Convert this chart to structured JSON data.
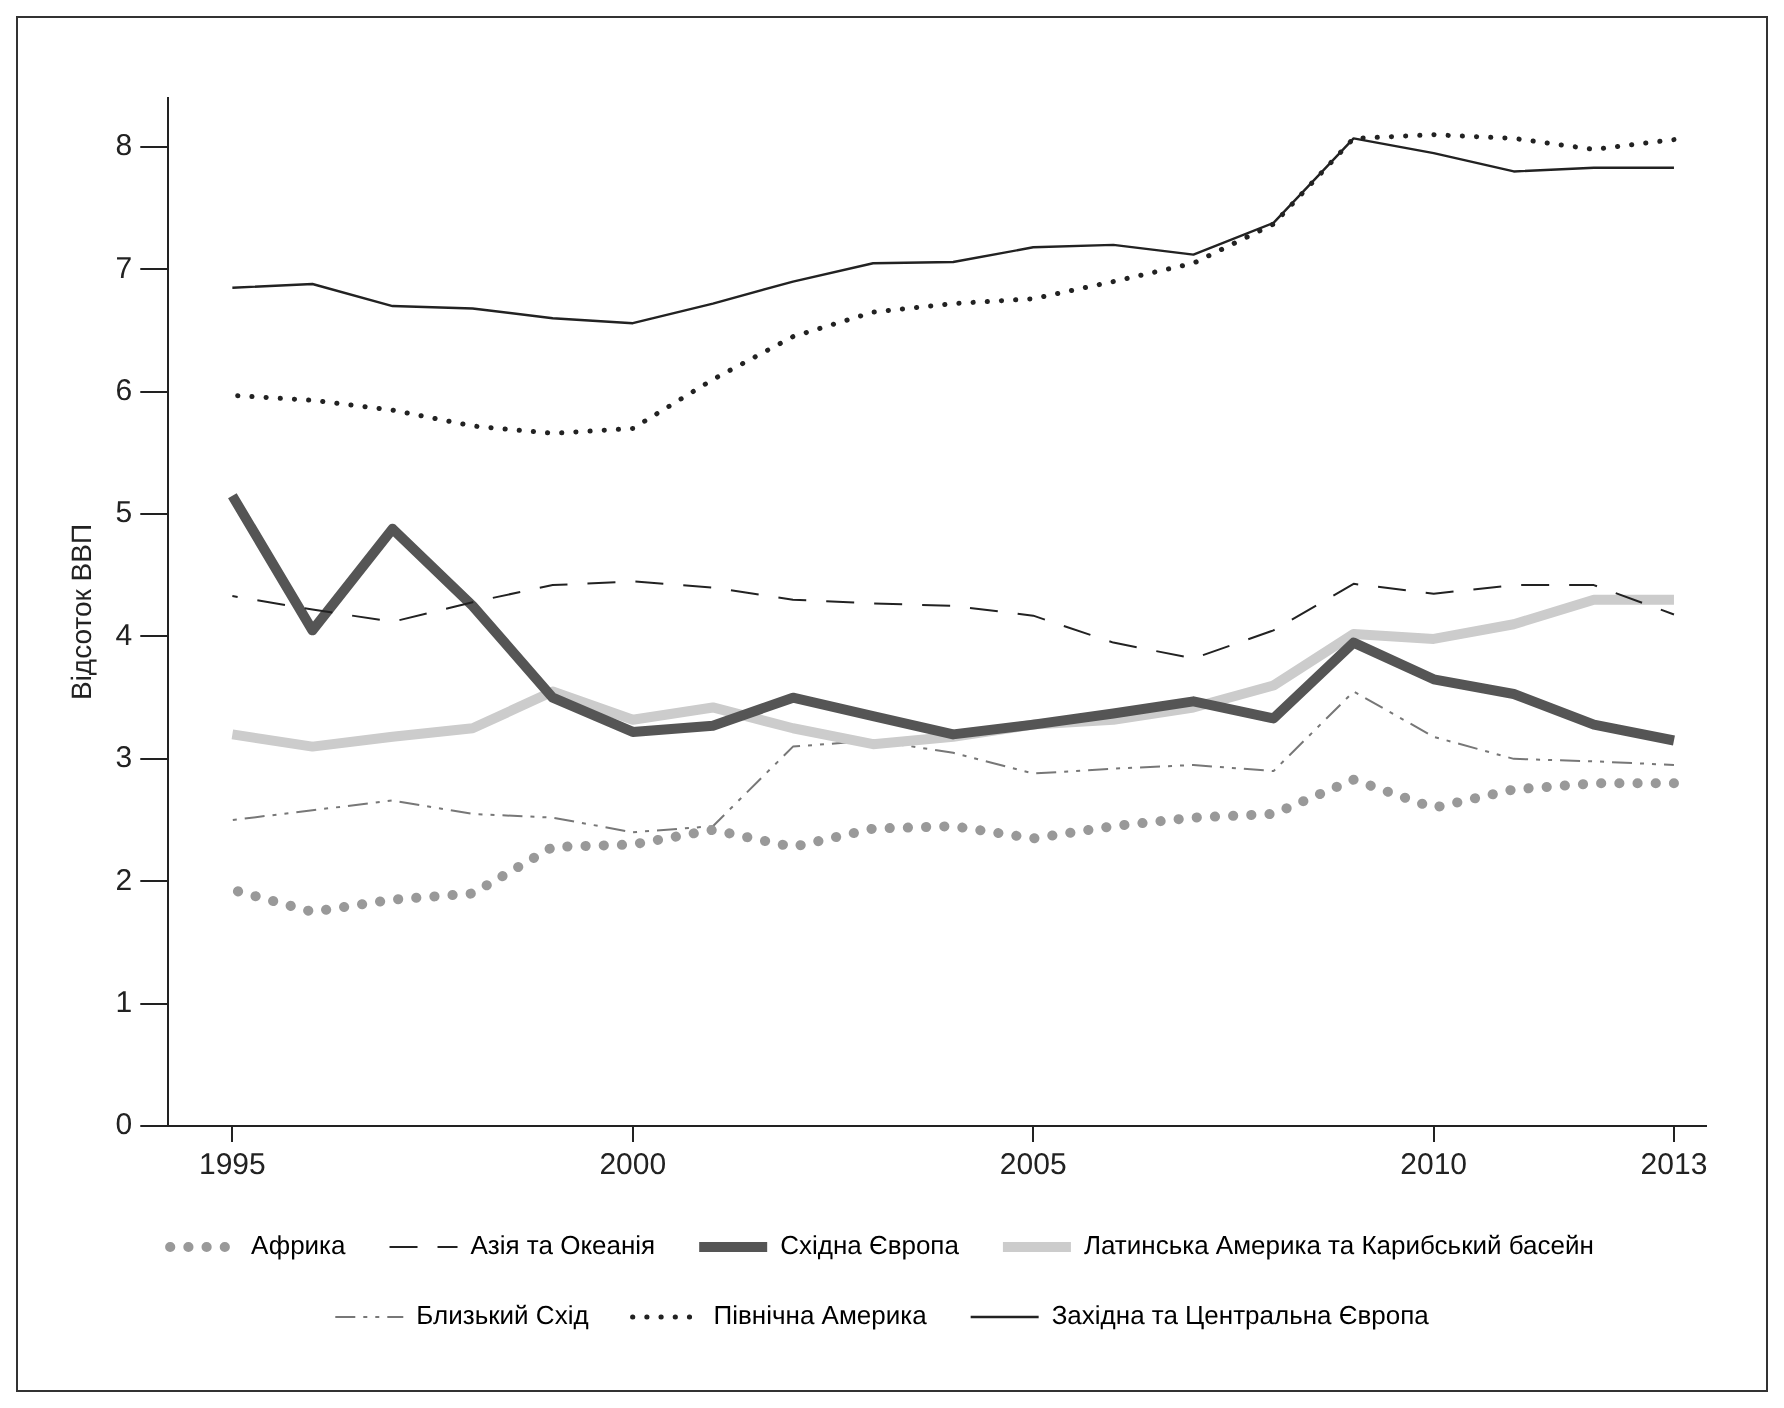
{
  "chart_data": {
    "type": "line",
    "ylabel": "Відсоток ВВП",
    "xlim": [
      1994.2,
      2013.4
    ],
    "xticks": [
      1995,
      2000,
      2005,
      2010,
      2013
    ],
    "ylim": [
      0,
      8.4
    ],
    "yticks": [
      0,
      1,
      2,
      3,
      4,
      5,
      6,
      7,
      8
    ],
    "grid": false,
    "legend": "bottom",
    "marker": "none",
    "x": [
      1995,
      1996,
      1997,
      1998,
      1999,
      2000,
      2001,
      2002,
      2003,
      2004,
      2005,
      2006,
      2007,
      2008,
      2009,
      2010,
      2011,
      2012,
      2013
    ],
    "series": [
      {
        "name": "Африка",
        "color": "#999999",
        "line_style": "dotted",
        "values": [
          1.93,
          1.75,
          1.85,
          1.9,
          2.28,
          2.3,
          2.42,
          2.28,
          2.43,
          2.45,
          2.35,
          2.45,
          2.52,
          2.55,
          2.83,
          2.6,
          2.75,
          2.8,
          2.8
        ]
      },
      {
        "name": "Азія та Океанія",
        "color": "#222222",
        "line_style": "dashed",
        "values": [
          4.33,
          4.22,
          4.12,
          4.28,
          4.42,
          4.45,
          4.4,
          4.3,
          4.27,
          4.25,
          4.17,
          3.95,
          3.82,
          4.05,
          4.43,
          4.35,
          4.42,
          4.42,
          4.18
        ]
      },
      {
        "name": "Східна Європа",
        "color": "#555555",
        "line_style": "solid",
        "values": [
          5.15,
          4.05,
          4.88,
          4.25,
          3.5,
          3.22,
          3.27,
          3.5,
          3.35,
          3.2,
          3.28,
          3.37,
          3.47,
          3.33,
          3.95,
          3.65,
          3.53,
          3.28,
          3.15
        ]
      },
      {
        "name": "Латинська Америка та Карибський басейн",
        "color": "#cccccc",
        "line_style": "solid",
        "values": [
          3.2,
          3.1,
          3.18,
          3.25,
          3.55,
          3.32,
          3.42,
          3.25,
          3.12,
          3.18,
          3.28,
          3.32,
          3.42,
          3.6,
          4.02,
          3.98,
          4.1,
          4.3,
          4.3
        ]
      },
      {
        "name": "Близький Схід",
        "color": "#777777",
        "line_style": "dashed",
        "values": [
          2.5,
          2.58,
          2.66,
          2.55,
          2.52,
          2.4,
          2.45,
          3.1,
          3.15,
          3.05,
          2.88,
          2.92,
          2.95,
          2.9,
          3.55,
          3.18,
          3.0,
          2.98,
          2.95
        ]
      },
      {
        "name": "Північна Америка",
        "color": "#222222",
        "line_style": "dotted",
        "values": [
          5.97,
          5.93,
          5.85,
          5.72,
          5.66,
          5.7,
          6.1,
          6.45,
          6.65,
          6.72,
          6.76,
          6.9,
          7.05,
          7.37,
          8.07,
          8.1,
          8.07,
          7.98,
          8.06
        ]
      },
      {
        "name": "Західна та Центральна Європа",
        "color": "#222222",
        "line_style": "solid",
        "values": [
          6.85,
          6.88,
          6.7,
          6.68,
          6.6,
          6.56,
          6.72,
          6.9,
          7.05,
          7.06,
          7.18,
          7.2,
          7.12,
          7.38,
          8.07,
          7.95,
          7.8,
          7.83,
          7.83
        ]
      }
    ]
  }
}
